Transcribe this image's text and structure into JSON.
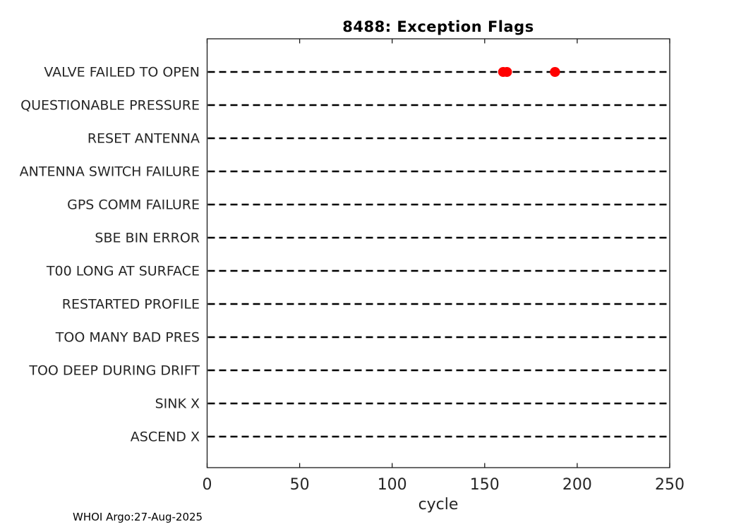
{
  "chart_data": {
    "type": "scatter",
    "title": "8488: Exception Flags",
    "xlabel": "cycle",
    "ylabel": "",
    "annotation": "WHOI Argo:27-Aug-2025",
    "categories": [
      "VALVE FAILED TO OPEN",
      "QUESTIONABLE PRESSURE",
      "RESET ANTENNA",
      "ANTENNA SWITCH FAILURE",
      "GPS COMM FAILURE",
      "SBE BIN ERROR",
      "T00 LONG AT SURFACE",
      "RESTARTED PROFILE",
      "TOO MANY BAD PRES",
      "TOO DEEP DURING DRIFT",
      "SINK X",
      "ASCEND X"
    ],
    "x_ticks": [
      0,
      50,
      100,
      150,
      200,
      250
    ],
    "xlim": [
      0,
      250
    ],
    "points": [
      {
        "category": "VALVE FAILED TO OPEN",
        "cycle": 160
      },
      {
        "category": "VALVE FAILED TO OPEN",
        "cycle": 162
      },
      {
        "category": "VALVE FAILED TO OPEN",
        "cycle": 188
      }
    ],
    "grid_style": "dashed",
    "legend_position": "none",
    "marker_color": "#ff0000",
    "grid_color": "#000000",
    "axis_color": "#1a1a1a",
    "label_color": "#262626"
  }
}
